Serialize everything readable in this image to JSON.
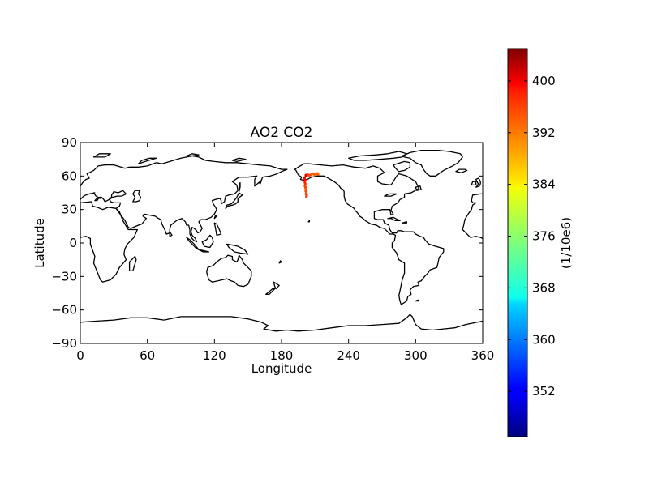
{
  "chart_data": {
    "type": "scatter",
    "title": "AO2 CO2",
    "xlabel": "Longitude",
    "ylabel": "Latitude",
    "xlim": [
      0,
      360
    ],
    "ylim": [
      -90,
      90
    ],
    "xticks": [
      0,
      60,
      120,
      180,
      240,
      300,
      360
    ],
    "yticks": [
      -90,
      -60,
      -30,
      0,
      30,
      60,
      90
    ],
    "xtick_labels": [
      "0",
      "60",
      "120",
      "180",
      "240",
      "300",
      "360"
    ],
    "ytick_labels": [
      "−90",
      "−60",
      "−30",
      "0",
      "30",
      "60",
      "90"
    ],
    "grid": false,
    "basemap": "world coastlines, 0–360 longitude",
    "colorbar": {
      "colormap": "jet",
      "range": [
        345,
        405
      ],
      "ticks": [
        352,
        360,
        368,
        376,
        384,
        392,
        400
      ],
      "tick_labels": [
        "352",
        "360",
        "368",
        "376",
        "384",
        "392",
        "400"
      ],
      "label": "(1/10e6)",
      "placement": "right"
    },
    "points": [
      {
        "lon": 201.8,
        "lat": 60.5,
        "value": 399
      },
      {
        "lon": 202.5,
        "lat": 60.9,
        "value": 400
      },
      {
        "lon": 203.4,
        "lat": 61.2,
        "value": 396
      },
      {
        "lon": 204.6,
        "lat": 60.7,
        "value": 393
      },
      {
        "lon": 206.0,
        "lat": 61.0,
        "value": 394
      },
      {
        "lon": 207.2,
        "lat": 61.8,
        "value": 391
      },
      {
        "lon": 208.3,
        "lat": 62.1,
        "value": 392
      },
      {
        "lon": 209.6,
        "lat": 61.4,
        "value": 393
      },
      {
        "lon": 210.8,
        "lat": 61.9,
        "value": 391
      },
      {
        "lon": 211.9,
        "lat": 62.4,
        "value": 390
      },
      {
        "lon": 212.7,
        "lat": 61.6,
        "value": 392
      },
      {
        "lon": 200.6,
        "lat": 57.8,
        "value": 398
      },
      {
        "lon": 201.1,
        "lat": 56.3,
        "value": 397
      },
      {
        "lon": 200.9,
        "lat": 54.6,
        "value": 396
      },
      {
        "lon": 201.3,
        "lat": 52.8,
        "value": 395
      },
      {
        "lon": 201.0,
        "lat": 51.2,
        "value": 393
      },
      {
        "lon": 201.5,
        "lat": 49.7,
        "value": 394
      },
      {
        "lon": 201.8,
        "lat": 48.2,
        "value": 392
      },
      {
        "lon": 201.6,
        "lat": 46.9,
        "value": 393
      },
      {
        "lon": 202.2,
        "lat": 45.6,
        "value": 394
      },
      {
        "lon": 202.0,
        "lat": 44.1,
        "value": 393
      },
      {
        "lon": 202.5,
        "lat": 42.8,
        "value": 395
      },
      {
        "lon": 202.3,
        "lat": 41.4,
        "value": 394
      }
    ]
  }
}
